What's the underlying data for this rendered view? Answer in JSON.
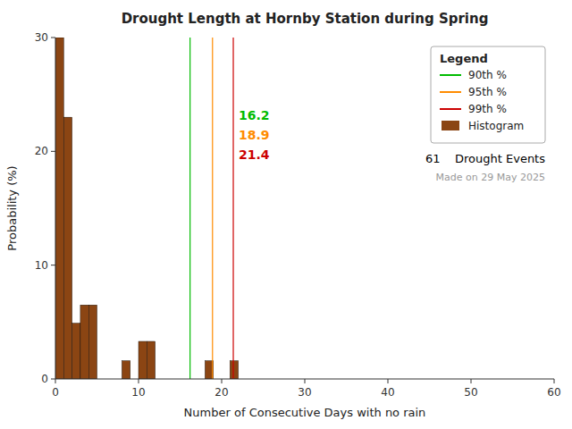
{
  "chart_data": {
    "type": "histogram",
    "title": "Drought Length at Hornby Station during Spring",
    "xlabel": "Number of Consecutive Days with no rain",
    "ylabel": "Probability (%)",
    "bins": [
      0,
      1,
      2,
      3,
      4,
      5,
      6,
      7,
      8,
      9,
      10,
      11,
      12,
      13,
      14,
      15,
      16,
      17,
      18,
      19,
      20,
      21,
      22
    ],
    "series": [
      {
        "name": "Histogram",
        "color": "#8B4513",
        "values": [
          30,
          23,
          4.9,
          6.5,
          6.5,
          0,
          0,
          0,
          1.6,
          0,
          3.3,
          3.3,
          0,
          0,
          0,
          0,
          0,
          0,
          1.6,
          0,
          0,
          1.6
        ]
      }
    ],
    "xlim": [
      0,
      60
    ],
    "ylim": [
      0,
      30
    ],
    "xticks": [
      0,
      10,
      20,
      30,
      40,
      50,
      60
    ],
    "yticks": [
      0,
      10,
      20,
      30
    ],
    "grid": false,
    "legend": "upper right",
    "legend_title": "Legend",
    "vlines": [
      {
        "name": "90th %",
        "value": 16.2,
        "label": "16.2",
        "color": "#00BB00"
      },
      {
        "name": "95th %",
        "value": 18.9,
        "label": "18.9",
        "color": "#FF8C00"
      },
      {
        "name": "99th %",
        "value": 21.4,
        "label": "21.4",
        "color": "#CC0000"
      }
    ],
    "annotations": [
      "61    Drought Events",
      "Made on 29 May 2025"
    ]
  }
}
